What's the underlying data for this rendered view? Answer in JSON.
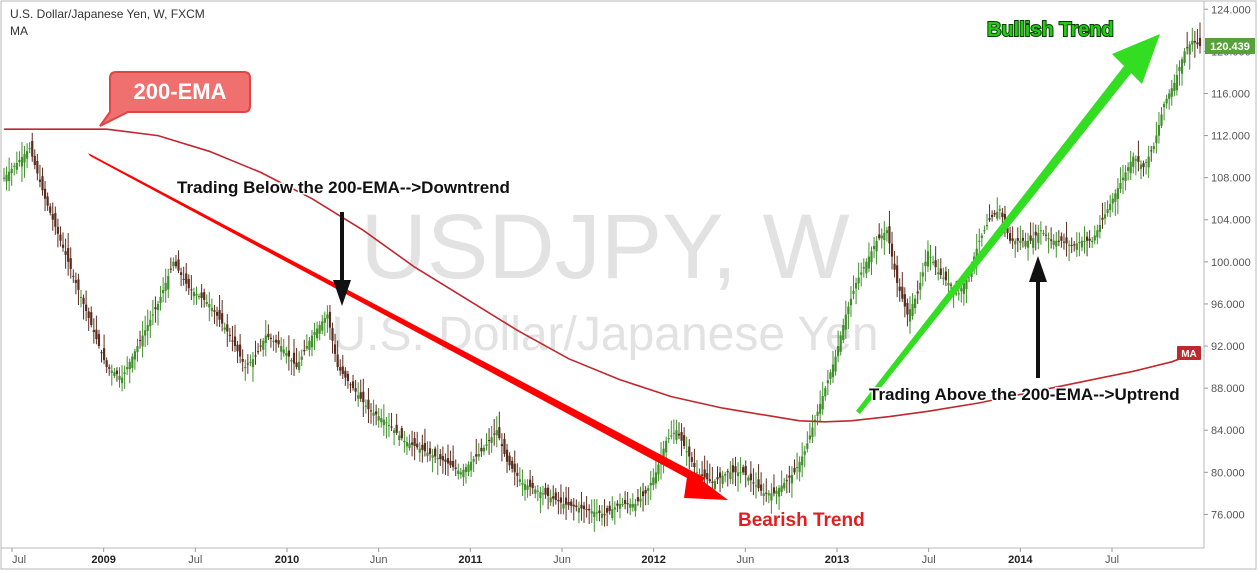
{
  "header": {
    "title": "U.S. Dollar/Japanese Yen, W, FXCM",
    "indicator": "MA"
  },
  "watermark": {
    "symbol": "USDJPY, W",
    "name": "U.S. Dollar/Japanese Yen"
  },
  "chart_data": {
    "type": "candlestick",
    "price_axis": {
      "ticks": [
        "124.000",
        "120.000",
        "116.000",
        "112.000",
        "108.000",
        "104.000",
        "100.000",
        "96.000",
        "92.000",
        "88.000",
        "84.000",
        "80.000",
        "76.000"
      ],
      "range": [
        73.0,
        124.5
      ],
      "last_price_label": "120.439",
      "last_price": 120.439
    },
    "time_axis": {
      "labels": [
        "Jul",
        "2009",
        "Jul",
        "2010",
        "Jun",
        "2011",
        "Jun",
        "2012",
        "Jun",
        "2013",
        "Jul",
        "2014",
        "Jul"
      ]
    },
    "price_path": [
      [
        0,
        108
      ],
      [
        10,
        110.8
      ],
      [
        16,
        106
      ],
      [
        22,
        102
      ],
      [
        28,
        98
      ],
      [
        34,
        94
      ],
      [
        40,
        90
      ],
      [
        46,
        89
      ],
      [
        52,
        92
      ],
      [
        60,
        96
      ],
      [
        66,
        100
      ],
      [
        72,
        97.5
      ],
      [
        80,
        96
      ],
      [
        88,
        93
      ],
      [
        94,
        90
      ],
      [
        98,
        91
      ],
      [
        102,
        93
      ],
      [
        108,
        92
      ],
      [
        114,
        90
      ],
      [
        120,
        93
      ],
      [
        126,
        95
      ],
      [
        130,
        90
      ],
      [
        136,
        88
      ],
      [
        142,
        86
      ],
      [
        148,
        85
      ],
      [
        156,
        83
      ],
      [
        164,
        82
      ],
      [
        172,
        81
      ],
      [
        178,
        80
      ],
      [
        186,
        82
      ],
      [
        192,
        84
      ],
      [
        196,
        81
      ],
      [
        202,
        79
      ],
      [
        210,
        78
      ],
      [
        218,
        77
      ],
      [
        226,
        76.5
      ],
      [
        234,
        76
      ],
      [
        240,
        77
      ],
      [
        246,
        77
      ],
      [
        250,
        78
      ],
      [
        254,
        80
      ],
      [
        258,
        83
      ],
      [
        262,
        84
      ],
      [
        266,
        82
      ],
      [
        270,
        80
      ],
      [
        276,
        79
      ],
      [
        282,
        80
      ],
      [
        288,
        80
      ],
      [
        292,
        79
      ],
      [
        296,
        78
      ],
      [
        300,
        78
      ],
      [
        304,
        79
      ],
      [
        308,
        80
      ],
      [
        312,
        82
      ],
      [
        316,
        85
      ],
      [
        320,
        88
      ],
      [
        324,
        91
      ],
      [
        328,
        95
      ],
      [
        332,
        98
      ],
      [
        336,
        100
      ],
      [
        340,
        102
      ],
      [
        344,
        103
      ],
      [
        348,
        98
      ],
      [
        352,
        95
      ],
      [
        356,
        97
      ],
      [
        360,
        101
      ],
      [
        364,
        99
      ],
      [
        368,
        98
      ],
      [
        372,
        97
      ],
      [
        376,
        99
      ],
      [
        380,
        102
      ],
      [
        384,
        104
      ],
      [
        388,
        105
      ],
      [
        392,
        102
      ],
      [
        396,
        102
      ],
      [
        400,
        102
      ],
      [
        404,
        103
      ],
      [
        408,
        102
      ],
      [
        412,
        102
      ],
      [
        416,
        101.5
      ],
      [
        420,
        102
      ],
      [
        424,
        102
      ],
      [
        428,
        104
      ],
      [
        432,
        106
      ],
      [
        436,
        108
      ],
      [
        440,
        110
      ],
      [
        444,
        109
      ],
      [
        448,
        111
      ],
      [
        452,
        115
      ],
      [
        456,
        117
      ],
      [
        460,
        120
      ],
      [
        463,
        121
      ],
      [
        466,
        120.5
      ]
    ],
    "ema200": [
      [
        0,
        112.6
      ],
      [
        40,
        112.6
      ],
      [
        60,
        112
      ],
      [
        80,
        110.5
      ],
      [
        100,
        108.5
      ],
      [
        120,
        106
      ],
      [
        140,
        103
      ],
      [
        160,
        99.5
      ],
      [
        180,
        96.5
      ],
      [
        200,
        93.5
      ],
      [
        220,
        90.8
      ],
      [
        240,
        88.8
      ],
      [
        260,
        87.2
      ],
      [
        280,
        86.1
      ],
      [
        300,
        85.3
      ],
      [
        310,
        84.9
      ],
      [
        320,
        84.8
      ],
      [
        330,
        84.9
      ],
      [
        345,
        85.3
      ],
      [
        360,
        85.8
      ],
      [
        380,
        86.6
      ],
      [
        400,
        87.6
      ],
      [
        420,
        88.6
      ],
      [
        440,
        89.6
      ],
      [
        455,
        90.5
      ],
      [
        466,
        91.5
      ]
    ],
    "ma_tag": "MA"
  },
  "annotations": {
    "ema_callout": "200-EMA",
    "downtrend_text": "Trading Below the 200-EMA-->Downtrend",
    "uptrend_text": "Trading Above the 200-EMA-->Uptrend",
    "bearish_label": "Bearish Trend",
    "bullish_label": "Bullish Trend"
  },
  "colors": {
    "up_candle": "#3f8f2a",
    "down_candle": "#5a2c1e",
    "ema_line": "#c0282d",
    "bearish_arrow": "#ff0000",
    "bullish_arrow": "#33dd22",
    "bearish_text": "#e02020",
    "bullish_text": "#22cc11",
    "callout_fill": "#f07070",
    "watermark": "#e2e2e2",
    "last_price_bg": "#58a13a"
  }
}
